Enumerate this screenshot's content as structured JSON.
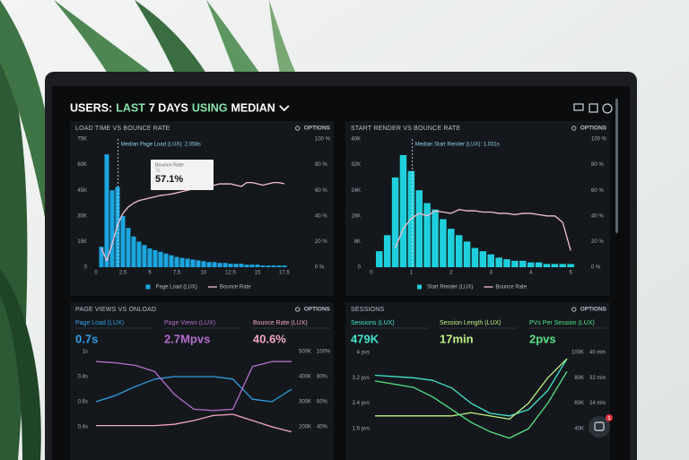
{
  "header": {
    "parts": [
      {
        "text": "USERS:",
        "color": "#ffffff"
      },
      {
        "text": "LAST",
        "color": "#86e2a8"
      },
      {
        "text": "7 DAYS",
        "color": "#ffffff"
      },
      {
        "text": "USING",
        "color": "#86e2a8"
      },
      {
        "text": "MEDIAN",
        "color": "#ffffff"
      }
    ]
  },
  "chat_badge": "1",
  "chart_data": [
    {
      "type": "combo",
      "title": "LOAD TIME VS BOUNCE RATE",
      "options": "OPTIONS",
      "x": [
        0.5,
        1,
        1.5,
        2,
        2.5,
        3,
        3.5,
        4,
        4.5,
        5,
        5.5,
        6,
        6.5,
        7,
        7.5,
        8,
        8.5,
        9,
        9.5,
        10,
        10.5,
        11,
        11.5,
        12,
        12.5,
        13,
        13.5,
        14,
        14.5,
        15,
        15.5,
        16,
        16.5,
        17,
        17.5
      ],
      "xlim": [
        0,
        19.25
      ],
      "xticks": [
        0,
        2.5,
        5,
        7.5,
        10,
        12.5,
        15,
        17.5
      ],
      "ylim": [
        0,
        75000
      ],
      "yticks": [
        0,
        {
          "value": 15000,
          "label": "15K"
        },
        {
          "value": 30000,
          "label": "30K"
        },
        {
          "value": 45000,
          "label": "45K"
        },
        {
          "value": 60000,
          "label": "60K"
        },
        {
          "value": 75000,
          "label": "75K"
        }
      ],
      "y2lim": [
        0,
        100
      ],
      "y2ticks": [
        {
          "value": 0,
          "label": "0 %"
        },
        {
          "value": 20,
          "label": "20 %"
        },
        {
          "value": 40,
          "label": "40 %"
        },
        {
          "value": 60,
          "label": "60 %"
        },
        {
          "value": 80,
          "label": "80 %"
        },
        {
          "value": 100,
          "label": "100 %"
        }
      ],
      "series": [
        {
          "name": "Page Load (LUX)",
          "mark": "bar",
          "color": "#1ba6e0",
          "values": [
            12000,
            66000,
            45000,
            47000,
            30000,
            23000,
            18000,
            15000,
            13000,
            11000,
            10000,
            9000,
            8000,
            7000,
            6000,
            5500,
            5000,
            4500,
            4000,
            3500,
            3000,
            3000,
            2500,
            2500,
            2000,
            2000,
            2000,
            1500,
            1500,
            1500,
            1000,
            1000,
            1000,
            1000,
            1000
          ]
        },
        {
          "name": "Bounce Rate",
          "mark": "line",
          "axis": "y2",
          "color": "#f4bfce",
          "values": [
            15,
            5,
            18,
            33,
            42,
            47,
            50,
            52,
            53,
            54,
            55,
            56,
            56.5,
            57.1,
            58,
            59,
            60,
            61,
            62,
            62,
            63,
            64,
            65,
            65,
            65,
            64,
            63,
            66,
            66,
            65,
            64,
            65,
            66,
            66,
            65
          ]
        }
      ],
      "median": {
        "x": 2.058,
        "label": "Median Page Load (LUX): 2.058s"
      },
      "tooltip": {
        "title": "Bounce Rate",
        "x_label": "7s",
        "value_label": "57.1%"
      }
    },
    {
      "type": "combo",
      "title": "START RENDER VS BOUNCE RATE",
      "options": "OPTIONS",
      "x": [
        0.2,
        0.4,
        0.6,
        0.8,
        1,
        1.2,
        1.4,
        1.6,
        1.8,
        2,
        2.2,
        2.4,
        2.6,
        2.8,
        3,
        3.2,
        3.4,
        3.6,
        3.8,
        4,
        4.2,
        4.4,
        4.6,
        4.8,
        5
      ],
      "xlim": [
        -0.2,
        5.2
      ],
      "xticks": [
        0,
        1,
        2,
        3,
        4,
        5
      ],
      "ylim": [
        0,
        40000
      ],
      "yticks": [
        0,
        {
          "value": 8000,
          "label": "8K"
        },
        {
          "value": 16000,
          "label": "16K"
        },
        {
          "value": 24000,
          "label": "24K"
        },
        {
          "value": 32000,
          "label": "32K"
        },
        {
          "value": 40000,
          "label": "40K"
        }
      ],
      "y2lim": [
        0,
        100
      ],
      "y2ticks": [
        {
          "value": 0,
          "label": "0 %"
        },
        {
          "value": 20,
          "label": "20 %"
        },
        {
          "value": 40,
          "label": "40 %"
        },
        {
          "value": 60,
          "label": "60 %"
        },
        {
          "value": 80,
          "label": "80 %"
        },
        {
          "value": 100,
          "label": "100 %"
        }
      ],
      "series": [
        {
          "name": "Start Render (LUX)",
          "mark": "bar",
          "color": "#1fd0dc",
          "values": [
            5000,
            10000,
            28000,
            35000,
            30000,
            24000,
            20000,
            18000,
            15000,
            12000,
            10000,
            8000,
            6000,
            5000,
            4000,
            3000,
            2500,
            2000,
            2000,
            1500,
            1500,
            1000,
            1000,
            1000,
            1000
          ]
        },
        {
          "name": "Bounce Rate",
          "mark": "line",
          "axis": "y2",
          "color": "#f4bfce",
          "values": [
            null,
            null,
            15,
            30,
            38,
            42,
            40,
            44,
            43,
            42,
            45,
            44,
            44,
            43,
            43,
            42,
            42,
            41,
            42,
            42,
            41,
            40,
            40,
            35,
            13
          ]
        }
      ],
      "median": {
        "x": 1.031,
        "label": "Median Start Render (LUX): 1.031s"
      }
    },
    {
      "type": "line",
      "title": "PAGE VIEWS VS ONLOAD",
      "options": "OPTIONS",
      "ylim": [
        0.4,
        1
      ],
      "yticks": [
        {
          "value": 1,
          "label": "1s"
        },
        {
          "value": 0.8,
          "label": "0.8s"
        },
        {
          "value": 0.6,
          "label": "0.6s"
        },
        {
          "value": 0.4,
          "label": "0.4s"
        }
      ],
      "y2lim": [
        200000,
        500000
      ],
      "y2ticks": [
        {
          "value": 500000,
          "label": "500K"
        },
        {
          "value": 400000,
          "label": "400K"
        },
        {
          "value": 300000,
          "label": "300K"
        },
        {
          "value": 200000,
          "label": "200K"
        }
      ],
      "y3lim": [
        40,
        100
      ],
      "y3ticks": [
        {
          "value": 100,
          "label": "100%"
        },
        {
          "value": 80,
          "label": "80%"
        },
        {
          "value": 60,
          "label": "60%"
        },
        {
          "value": 40,
          "label": "40%"
        }
      ],
      "series": [
        {
          "name": "Page Load (LUX)",
          "summary": "0.7s",
          "color": "#2f9fe4",
          "axis": "y",
          "values": [
            0.6,
            0.65,
            0.72,
            0.78,
            0.8,
            0.8,
            0.8,
            0.78,
            0.62,
            0.6,
            0.7
          ]
        },
        {
          "name": "Page Views (LUX)",
          "summary": "2.7Mpvs",
          "color": "#b56ccd",
          "axis": "y2",
          "values": [
            460000,
            455000,
            445000,
            420000,
            330000,
            270000,
            265000,
            270000,
            440000,
            460000,
            460000
          ]
        },
        {
          "name": "Bounce Rate (LUX)",
          "summary": "40.6%",
          "color": "#f2a6c0",
          "axis": "y3",
          "values": [
            41,
            41,
            41,
            41,
            42,
            45,
            49,
            50,
            45,
            40,
            36
          ]
        }
      ]
    },
    {
      "type": "line",
      "title": "SESSIONS",
      "options": "OPTIONS",
      "ylim": [
        1.6,
        4
      ],
      "yticks": [
        {
          "value": 4,
          "label": "4 pvs"
        },
        {
          "value": 3.2,
          "label": "3.2 pvs"
        },
        {
          "value": 2.4,
          "label": "2.4 pvs"
        },
        {
          "value": 1.6,
          "label": "1.6 pvs"
        }
      ],
      "y2lim": [
        40000,
        100000
      ],
      "y2ticks": [
        {
          "value": 100000,
          "label": "100K"
        },
        {
          "value": 80000,
          "label": "80K"
        },
        {
          "value": 60000,
          "label": "60K"
        },
        {
          "value": 40000,
          "label": "40K"
        }
      ],
      "y3lim": [
        16,
        40
      ],
      "y3ticks": [
        {
          "value": 40,
          "label": "40 min"
        },
        {
          "value": 32,
          "label": "32 min"
        },
        {
          "value": 24,
          "label": "24 min"
        },
        {
          "value": 16,
          "label": "16 min"
        }
      ],
      "series": [
        {
          "name": "Sessions (LUX)",
          "summary": "479K",
          "color": "#43e3cb",
          "axis": "y2",
          "values": [
            82000,
            81000,
            80000,
            78000,
            72000,
            60000,
            52000,
            50000,
            55000,
            70000,
            95000
          ]
        },
        {
          "name": "Session Length (LUX)",
          "summary": "17min",
          "color": "#bdf281",
          "axis": "y3",
          "values": [
            20,
            20,
            20,
            20,
            20,
            21,
            20,
            19,
            24,
            32,
            38
          ]
        },
        {
          "name": "PVs Per Session (LUX)",
          "summary": "2pvs",
          "color": "#55e383",
          "axis": "y",
          "values": [
            3.1,
            3.0,
            2.9,
            2.6,
            2.2,
            1.8,
            1.5,
            1.3,
            1.6,
            2.4,
            3.4
          ]
        }
      ]
    }
  ]
}
